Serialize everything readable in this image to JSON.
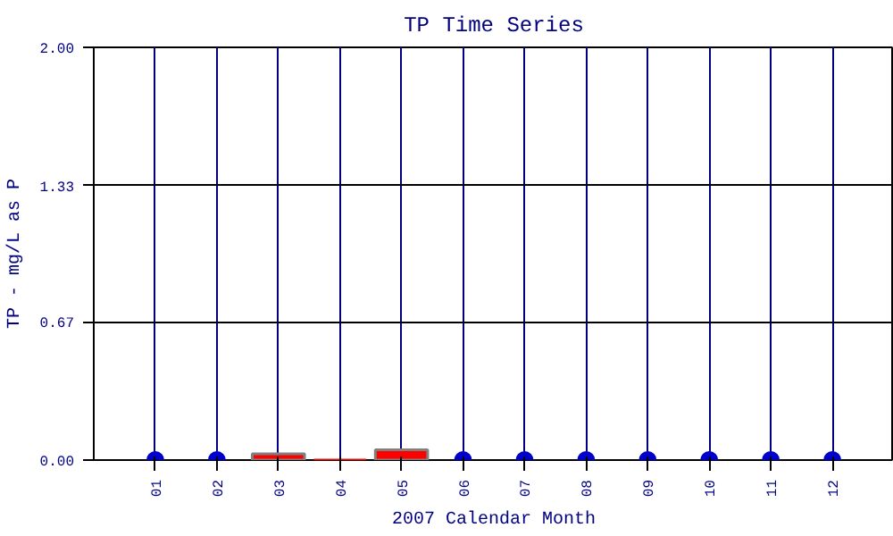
{
  "chart_data": {
    "type": "bar",
    "title": "TP Time Series",
    "xlabel": "2007 Calendar Month",
    "ylabel": "TP - mg/L as P",
    "categories": [
      "01",
      "02",
      "03",
      "04",
      "05",
      "06",
      "07",
      "08",
      "09",
      "10",
      "11",
      "12"
    ],
    "series": [
      {
        "color": "#ff0000",
        "values": [
          null,
          null,
          0.03,
          0.0,
          0.05,
          null,
          null,
          null,
          null,
          null,
          null,
          null
        ]
      },
      {
        "type": "scatter",
        "color": "#0000cc",
        "values": [
          0,
          0,
          null,
          null,
          null,
          0,
          0,
          0,
          0,
          0,
          0,
          0
        ]
      }
    ],
    "ylim": [
      0,
      2
    ],
    "yticks": [
      {
        "value": 0,
        "label": "0.00"
      },
      {
        "value": 0.67,
        "label": "0.67"
      },
      {
        "value": 1.33,
        "label": "1.33"
      },
      {
        "value": 2,
        "label": "2.00"
      }
    ],
    "grid": true,
    "marker": "circle"
  }
}
